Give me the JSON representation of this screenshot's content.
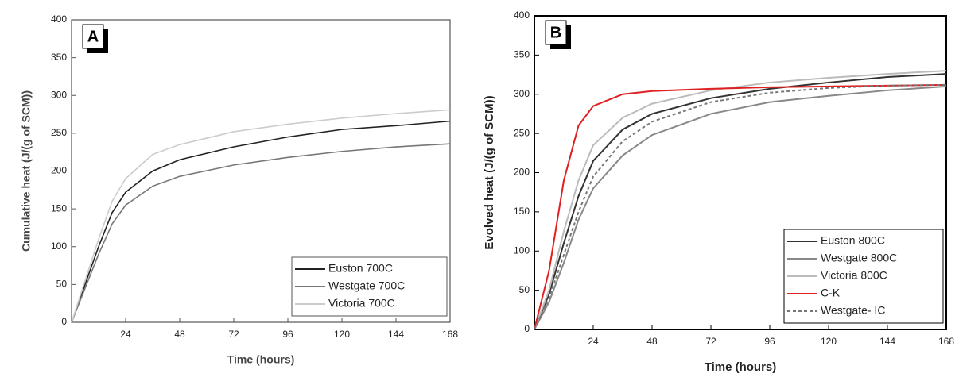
{
  "chart_data": [
    {
      "type": "line",
      "panel_label": "A",
      "xlabel": "Time (hours)",
      "ylabel": "Cumulative heat (J/(g of SCM))",
      "x": [
        0,
        6,
        12,
        18,
        24,
        36,
        48,
        72,
        96,
        120,
        144,
        168
      ],
      "xlim": [
        0,
        168
      ],
      "xticks": [
        24,
        48,
        72,
        96,
        120,
        144,
        168
      ],
      "ylim": [
        0,
        400
      ],
      "yticks": [
        0,
        50,
        100,
        150,
        200,
        250,
        300,
        350,
        400
      ],
      "legend": "lower right",
      "series": [
        {
          "name": "Euston 700C",
          "color": "#222222",
          "values": [
            0,
            50,
            100,
            145,
            172,
            200,
            215,
            232,
            245,
            255,
            260,
            266
          ]
        },
        {
          "name": "Westgate 700C",
          "color": "#777777",
          "values": [
            0,
            45,
            90,
            130,
            155,
            180,
            193,
            208,
            218,
            226,
            232,
            236
          ]
        },
        {
          "name": "Victoria 700C",
          "color": "#cccccc",
          "values": [
            0,
            55,
            110,
            160,
            190,
            222,
            235,
            252,
            262,
            270,
            276,
            281
          ]
        }
      ]
    },
    {
      "type": "line",
      "panel_label": "B",
      "xlabel": "Time (hours)",
      "ylabel": "Evolved heat (J/(g of SCM))",
      "x": [
        0,
        6,
        12,
        18,
        24,
        36,
        48,
        72,
        96,
        120,
        144,
        168
      ],
      "xlim": [
        0,
        168
      ],
      "xticks": [
        24,
        48,
        72,
        96,
        120,
        144,
        168
      ],
      "ylim": [
        0,
        400
      ],
      "yticks": [
        0,
        50,
        100,
        150,
        200,
        250,
        300,
        350,
        400
      ],
      "legend": "lower right",
      "series": [
        {
          "name": "Euston 800C",
          "color": "#333333",
          "values": [
            0,
            45,
            110,
            170,
            215,
            255,
            275,
            295,
            307,
            315,
            322,
            326
          ]
        },
        {
          "name": "Westgate 800C",
          "color": "#888888",
          "values": [
            0,
            35,
            85,
            140,
            180,
            222,
            248,
            275,
            290,
            298,
            305,
            310
          ]
        },
        {
          "name": "Victoria 800C",
          "color": "#bbbbbb",
          "values": [
            0,
            50,
            125,
            190,
            235,
            270,
            288,
            305,
            315,
            321,
            326,
            330
          ]
        },
        {
          "name": "C-K",
          "color": "#e02020",
          "values": [
            0,
            75,
            190,
            260,
            285,
            300,
            304,
            307,
            309,
            310,
            311,
            312
          ]
        },
        {
          "name": "Westgate- IC",
          "color": "#777777",
          "dashed": true,
          "values": [
            0,
            40,
            95,
            150,
            195,
            240,
            265,
            290,
            302,
            308,
            311,
            312
          ]
        }
      ]
    }
  ]
}
